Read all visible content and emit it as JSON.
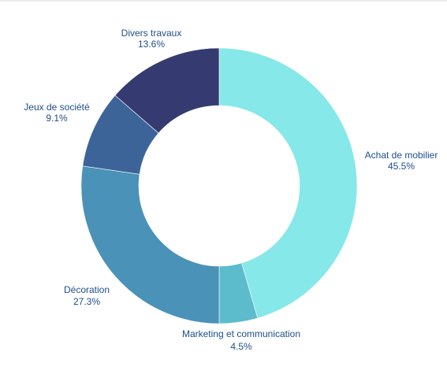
{
  "chart_data": {
    "type": "pie",
    "variant": "donut",
    "title": "",
    "start": "top",
    "direction": "clockwise",
    "slices": [
      {
        "label": "Achat de mobilier",
        "value": 45.5,
        "value_label": "45.5%",
        "color": "#86e8e8"
      },
      {
        "label": "Marketing et communication",
        "value": 4.5,
        "value_label": "4.5%",
        "color": "#5cbccc"
      },
      {
        "label": "Décoration",
        "value": 27.3,
        "value_label": "27.3%",
        "color": "#4a92b8"
      },
      {
        "label": "Jeux de société",
        "value": 9.1,
        "value_label": "9.1%",
        "color": "#3d6499"
      },
      {
        "label": "Divers travaux",
        "value": 13.6,
        "value_label": "13.6%",
        "color": "#353b70"
      }
    ]
  }
}
